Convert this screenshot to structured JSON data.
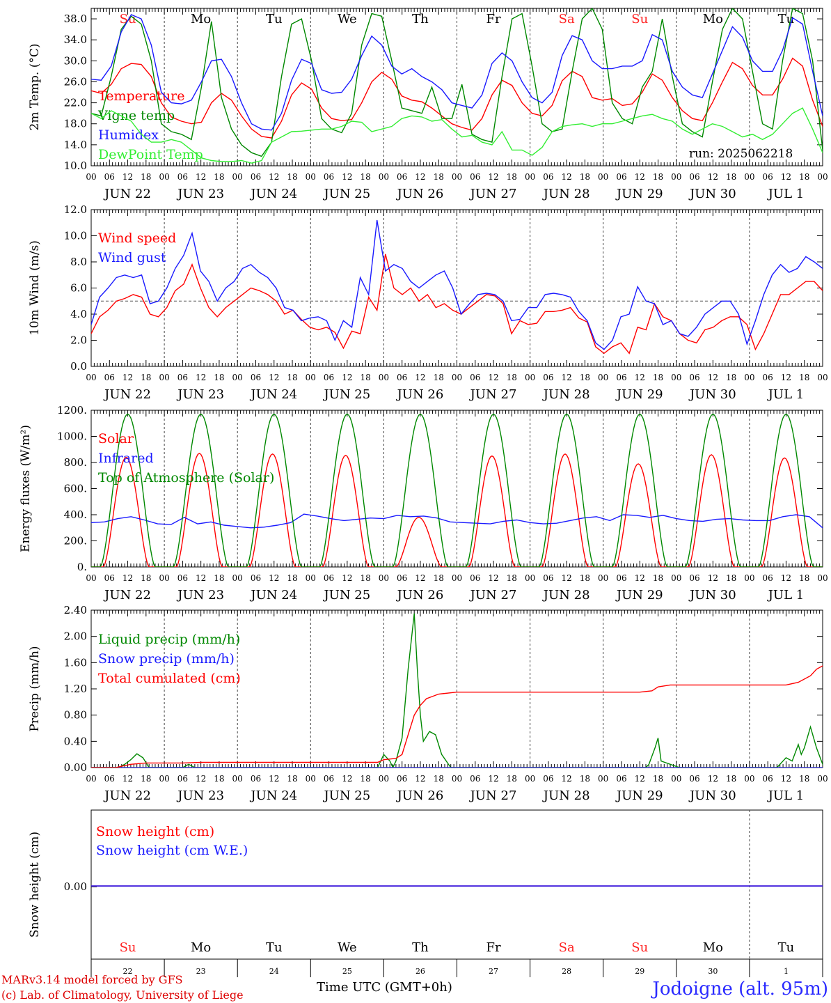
{
  "days": [
    "Su",
    "Mo",
    "Tu",
    "We",
    "Th",
    "Fr",
    "Sa",
    "Su",
    "Mo",
    "Tu"
  ],
  "weekend_days": [
    0,
    6,
    7
  ],
  "dates": [
    "JUN 22",
    "JUN 23",
    "JUN 24",
    "JUN 25",
    "JUN 26",
    "JUN 27",
    "JUN 28",
    "JUN 29",
    "JUN 30",
    "JUL  1"
  ],
  "day_numbers": [
    "22",
    "23",
    "24",
    "25",
    "26",
    "27",
    "28",
    "29",
    "30",
    "1"
  ],
  "hour_labels": [
    "00",
    "06",
    "12",
    "18"
  ],
  "end_hour_label": "00",
  "colors": {
    "red": "#ff0000",
    "green": "#008800",
    "blue": "#1a1aff",
    "lightgreen": "#33ee33",
    "weekend": "#ff2222"
  },
  "run_label": "run: 2025062218",
  "footer": {
    "model": "MARv3.14 model forced by GFS",
    "copyright": "(c) Lab. of Climatology, University of Liege",
    "time_label": "Time UTC (GMT+0h)",
    "location": "Jodoigne (alt. 95m)"
  },
  "chart_data": [
    {
      "type": "line",
      "ylabel": "2m Temp. (°C)",
      "ylim": [
        10,
        40
      ],
      "yticks": [
        "10.0",
        "14.0",
        "18.0",
        "22.0",
        "26.0",
        "30.0",
        "34.0",
        "38.0"
      ],
      "ytick_values": [
        10,
        14,
        18,
        22,
        26,
        30,
        34,
        38
      ],
      "x_unit": "hours since JUN 22 00 UTC",
      "x_step_hours": 3,
      "series": [
        {
          "name": "Temperature",
          "color": "#ff0000",
          "values": [
            24.3,
            23.8,
            25.5,
            28.5,
            29.5,
            29.3,
            27,
            22,
            19.3,
            18.5,
            18,
            18.3,
            22,
            23.8,
            22.5,
            19.5,
            17,
            15.6,
            15.3,
            18.5,
            23.5,
            25.8,
            24.6,
            21,
            19,
            18.6,
            18.8,
            22,
            26,
            27.8,
            26.5,
            23.3,
            22.5,
            22.2,
            21,
            19.5,
            18,
            17.3,
            16.8,
            19,
            23.5,
            26.3,
            25.3,
            22,
            20,
            19.5,
            21.5,
            26.2,
            28,
            27,
            23,
            22.5,
            22.8,
            21.5,
            21.8,
            24,
            27.5,
            26.3,
            23,
            20.5,
            19,
            18.6,
            22,
            26,
            29.7,
            28.5,
            25.3,
            23.5,
            23.5,
            26.5,
            30.5,
            29,
            22.5,
            17.5
          ]
        },
        {
          "name": "Vigne temp",
          "color": "#008800",
          "values": [
            20,
            19.5,
            27,
            36,
            38.5,
            37,
            30,
            18,
            16.5,
            16,
            15,
            25,
            37.5,
            23,
            17,
            14,
            12.5,
            11.8,
            14.5,
            27,
            37,
            38,
            30,
            19,
            17,
            16.3,
            20,
            33,
            39,
            38.5,
            30,
            21,
            20.5,
            20,
            25,
            19,
            19,
            25.5,
            16,
            15,
            14.5,
            27,
            38,
            39,
            29,
            18,
            16.5,
            17,
            28,
            38,
            40,
            36,
            22,
            19,
            18,
            25,
            28,
            38,
            27,
            18,
            16.5,
            15.5,
            26,
            36,
            40,
            38,
            28,
            18,
            17,
            30,
            40,
            39,
            30,
            13
          ]
        },
        {
          "name": "Humidex",
          "color": "#1a1aff",
          "values": [
            26.5,
            26.3,
            29,
            35.5,
            38.8,
            38,
            33,
            24,
            22,
            21.8,
            22.5,
            26,
            30,
            30.3,
            27,
            22,
            18,
            17,
            16.8,
            20,
            26.3,
            30.3,
            29.5,
            24.5,
            23.8,
            24,
            26.5,
            31,
            34.7,
            33,
            29,
            27.5,
            28.5,
            27,
            26,
            24.5,
            22,
            21.5,
            21,
            23.5,
            29.5,
            31.5,
            30,
            26,
            23,
            22,
            24,
            31,
            34.8,
            34,
            30,
            28.5,
            28.5,
            29,
            29,
            30,
            35,
            34,
            28,
            25,
            23.5,
            23,
            27.5,
            32,
            36.5,
            34.5,
            30,
            28,
            28,
            32,
            38.2,
            37,
            28,
            19.5
          ]
        },
        {
          "name": "DewPoint Temp",
          "color": "#33ee33",
          "values": [
            20,
            19,
            20.5,
            19.5,
            18.5,
            16,
            14.5,
            14.5,
            15,
            14.5,
            13,
            11.5,
            11,
            10.8,
            10.8,
            11,
            10.5,
            11,
            14.5,
            15.5,
            16.5,
            16.6,
            16.8,
            17,
            17,
            17.5,
            18.5,
            18.3,
            16.5,
            17,
            17.5,
            19,
            19.5,
            19.3,
            18.5,
            18.8,
            17,
            15.5,
            15.8,
            14.5,
            14,
            16.5,
            13,
            13,
            12,
            13.5,
            16.5,
            17.5,
            17.8,
            18,
            17.5,
            18,
            18,
            18.5,
            19,
            19.5,
            19.8,
            19,
            18.5,
            17,
            16,
            17,
            18,
            17.5,
            16.5,
            15.5,
            16,
            15,
            16,
            18,
            20,
            21,
            17,
            12.5
          ]
        }
      ]
    },
    {
      "type": "line",
      "ylabel": "10m Wind (m/s)",
      "ylim": [
        0,
        12
      ],
      "yticks": [
        "0.0",
        "2.0",
        "4.0",
        "6.0",
        "8.0",
        "10.0",
        "12.0"
      ],
      "ytick_values": [
        0,
        2,
        4,
        6,
        8,
        10,
        12
      ],
      "reference_line": 5,
      "x_unit": "hours since JUN 22 00 UTC",
      "x_step_hours": 3,
      "series": [
        {
          "name": "Wind speed",
          "color": "#ff0000",
          "values": [
            2.5,
            3.8,
            4.3,
            5,
            5.2,
            5.5,
            5.3,
            4,
            3.8,
            4.5,
            5.8,
            6.3,
            7.8,
            6,
            4.5,
            3.8,
            4.5,
            5,
            5.5,
            6,
            5.8,
            5.5,
            5,
            4,
            4.3,
            3.6,
            3,
            2.8,
            3,
            2.6,
            1.4,
            2.7,
            2.5,
            5.3,
            4.3,
            8.6,
            6,
            5.5,
            6,
            5,
            5.5,
            4.5,
            4.8,
            4.3,
            4,
            4.5,
            5,
            5.5,
            5.4,
            4.8,
            2.5,
            3.5,
            3.2,
            3.3,
            4.2,
            4.2,
            4.3,
            4.5,
            3.7,
            3.4,
            1.5,
            1.0,
            1.5,
            1.8,
            1.0,
            3,
            2.8,
            4.8,
            3.8,
            3.5,
            2.5,
            2,
            1.8,
            2.8,
            3,
            3.5,
            3.8,
            3.8,
            3.2,
            1.3,
            2.5,
            4,
            5.5,
            5.5,
            6,
            6.5,
            6.5,
            5.8
          ]
        },
        {
          "name": "Wind gust",
          "color": "#1a1aff",
          "values": [
            3.2,
            5.3,
            6,
            6.8,
            7,
            6.8,
            7,
            4.8,
            5,
            6,
            7.5,
            8.5,
            10.2,
            7.3,
            6.5,
            5,
            6,
            6.5,
            7.5,
            7.8,
            7.2,
            6.8,
            6,
            4.5,
            4.3,
            3.5,
            3.7,
            3.8,
            3.5,
            2,
            3.5,
            3,
            6.8,
            5.5,
            11.2,
            7.3,
            7.8,
            7.5,
            6.5,
            6,
            6.5,
            7,
            7.3,
            6,
            4,
            4.8,
            5.5,
            5.6,
            5.5,
            5,
            3.5,
            3.6,
            4.5,
            4.5,
            5.5,
            5.6,
            5.5,
            5.3,
            4.2,
            3.5,
            1.8,
            1.3,
            2,
            3.8,
            4,
            6.1,
            5,
            4.8,
            3.2,
            3.5,
            2.5,
            2.3,
            3,
            4,
            4.5,
            5,
            5,
            4,
            1.7,
            3.5,
            5.5,
            7,
            7.8,
            7.2,
            7.5,
            8.4,
            8.0,
            7.5
          ]
        }
      ]
    },
    {
      "type": "line",
      "ylabel": "Energy fluxes (W/m²)",
      "ylim": [
        0,
        1200
      ],
      "yticks": [
        "0.",
        "200.",
        "400.",
        "600.",
        "800.",
        "1000.",
        "1200."
      ],
      "ytick_values": [
        0,
        200,
        400,
        600,
        800,
        1000,
        1200
      ],
      "x_unit": "hours since JUN 22 00 UTC",
      "series": [
        {
          "name": "Solar",
          "color": "#ff0000",
          "daily_peaks": [
            840,
            870,
            865,
            855,
            380,
            850,
            865,
            790,
            860,
            835
          ]
        },
        {
          "name": "Infrared",
          "color": "#1a1aff",
          "values": [
            340,
            345,
            370,
            385,
            360,
            330,
            325,
            380,
            330,
            345,
            320,
            310,
            300,
            305,
            320,
            340,
            405,
            390,
            370,
            355,
            365,
            375,
            370,
            395,
            385,
            390,
            375,
            345,
            340,
            335,
            330,
            350,
            360,
            340,
            330,
            335,
            355,
            375,
            385,
            355,
            400,
            395,
            380,
            395,
            370,
            355,
            350,
            365,
            370,
            360,
            355,
            355,
            385,
            400,
            385,
            300
          ]
        },
        {
          "name": "Top of Atmosphere (Solar)",
          "color": "#008800",
          "daily_peak": 1170
        }
      ]
    },
    {
      "type": "line",
      "ylabel": "Precip (mm/h)",
      "ylim": [
        0,
        2.4
      ],
      "yticks": [
        "0.00",
        "0.40",
        "0.80",
        "1.20",
        "1.60",
        "2.00",
        "2.40"
      ],
      "ytick_values": [
        0,
        0.4,
        0.8,
        1.2,
        1.6,
        2.0,
        2.4
      ],
      "x_unit": "hours since JUN 22 00 UTC",
      "series": [
        {
          "name": "Liquid precip (mm/h)",
          "color": "#008800",
          "points": [
            [
              0,
              0
            ],
            [
              9,
              0
            ],
            [
              11,
              0.05
            ],
            [
              13,
              0.12
            ],
            [
              15,
              0.21
            ],
            [
              17,
              0.15
            ],
            [
              19,
              0
            ],
            [
              30,
              0
            ],
            [
              32,
              0.05
            ],
            [
              34,
              0
            ],
            [
              94,
              0
            ],
            [
              96,
              0.2
            ],
            [
              98,
              0.1
            ],
            [
              99,
              0
            ],
            [
              100,
              0.1
            ],
            [
              102,
              0.45
            ],
            [
              104,
              1.5
            ],
            [
              106,
              2.35
            ],
            [
              107,
              1.5
            ],
            [
              108,
              0.8
            ],
            [
              109,
              0.4
            ],
            [
              111,
              0.55
            ],
            [
              113,
              0.5
            ],
            [
              115,
              0.2
            ],
            [
              118,
              0
            ],
            [
              182,
              0
            ],
            [
              183,
              0.05
            ],
            [
              185,
              0.3
            ],
            [
              186,
              0.45
            ],
            [
              187,
              0.1
            ],
            [
              190,
              0.05
            ],
            [
              193,
              0
            ],
            [
              225,
              0
            ],
            [
              228,
              0.15
            ],
            [
              230,
              0.1
            ],
            [
              232,
              0.35
            ],
            [
              233,
              0.2
            ],
            [
              234,
              0.3
            ],
            [
              236,
              0.62
            ],
            [
              238,
              0.3
            ],
            [
              240,
              0.05
            ],
            [
              242,
              0
            ]
          ]
        },
        {
          "name": "Snow precip (mm/h)",
          "color": "#1a1aff",
          "values": [
            0
          ]
        },
        {
          "name": "Total cumulated (cm)",
          "color": "#ff0000",
          "points": [
            [
              0,
              0
            ],
            [
              8,
              0
            ],
            [
              13,
              0.05
            ],
            [
              18,
              0.07
            ],
            [
              30,
              0.07
            ],
            [
              36,
              0.08
            ],
            [
              94,
              0.08
            ],
            [
              96,
              0.12
            ],
            [
              100,
              0.14
            ],
            [
              102,
              0.2
            ],
            [
              104,
              0.5
            ],
            [
              106,
              0.8
            ],
            [
              108,
              0.95
            ],
            [
              110,
              1.05
            ],
            [
              114,
              1.12
            ],
            [
              120,
              1.15
            ],
            [
              180,
              1.15
            ],
            [
              184,
              1.17
            ],
            [
              186,
              1.23
            ],
            [
              190,
              1.26
            ],
            [
              228,
              1.26
            ],
            [
              232,
              1.3
            ],
            [
              236,
              1.4
            ],
            [
              238,
              1.5
            ],
            [
              240,
              1.55
            ],
            [
              252,
              1.55
            ]
          ]
        }
      ]
    },
    {
      "type": "line",
      "ylabel": "Snow height (cm)",
      "yticks": [
        "0.00"
      ],
      "x_unit": "hours since JUN 22 00 UTC",
      "series": [
        {
          "name": "Snow height (cm)",
          "color": "#ff0000",
          "values": [
            0,
            0
          ]
        },
        {
          "name": "Snow height (cm W.E.)",
          "color": "#1a1aff",
          "values": [
            0,
            0
          ]
        }
      ]
    }
  ]
}
